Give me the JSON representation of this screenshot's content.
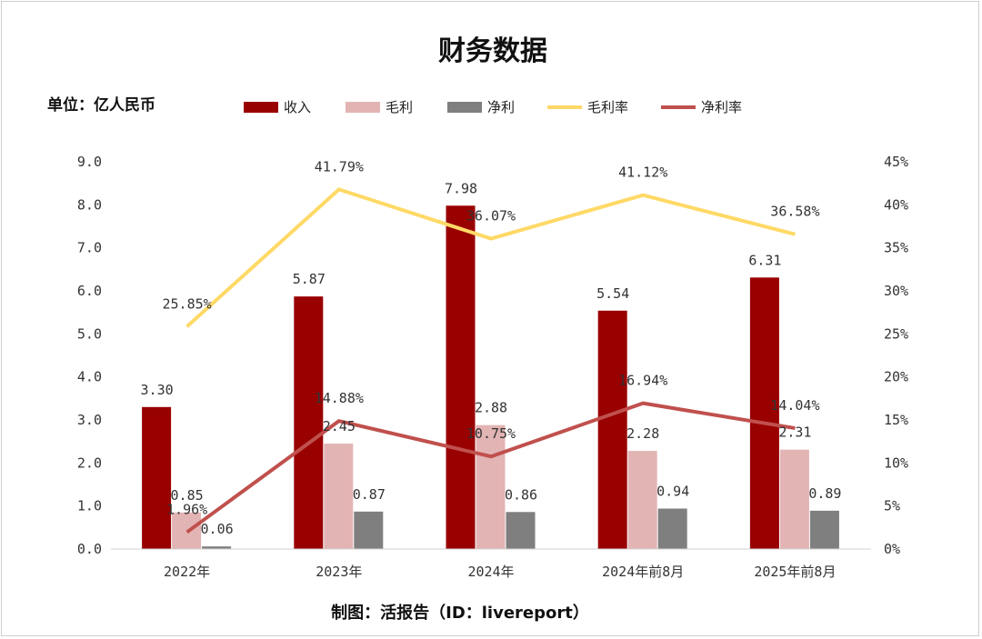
{
  "chart_data": {
    "type": "bar",
    "title": "财务数据",
    "unit_label": "单位：亿人民币",
    "source": "制图：活报告（ID：livereport）",
    "categories": [
      "2022年",
      "2023年",
      "2024年",
      "2024年前8月",
      "2025年前8月"
    ],
    "y_left": {
      "min": 0,
      "max": 9,
      "step": 1,
      "ticks": [
        "0.0",
        "1.0",
        "2.0",
        "3.0",
        "4.0",
        "5.0",
        "6.0",
        "7.0",
        "8.0",
        "9.0"
      ]
    },
    "y_right": {
      "min": 0,
      "max": 45,
      "step": 5,
      "ticks": [
        "0%",
        "5%",
        "10%",
        "15%",
        "20%",
        "25%",
        "30%",
        "35%",
        "40%",
        "45%"
      ]
    },
    "series": [
      {
        "name": "收入",
        "kind": "bar",
        "color": "#990000",
        "values": [
          3.3,
          5.87,
          7.98,
          5.54,
          6.31
        ],
        "labels": [
          "3.30",
          "5.87",
          "7.98",
          "5.54",
          "6.31"
        ]
      },
      {
        "name": "毛利",
        "kind": "bar",
        "color": "#e3b4b4",
        "values": [
          0.85,
          2.45,
          2.88,
          2.28,
          2.31
        ],
        "labels": [
          "0.85",
          "2.45",
          "2.88",
          "2.28",
          "2.31"
        ]
      },
      {
        "name": "净利",
        "kind": "bar",
        "color": "#7f7f7f",
        "values": [
          0.06,
          0.87,
          0.86,
          0.94,
          0.89
        ],
        "labels": [
          "0.06",
          "0.87",
          "0.86",
          "0.94",
          "0.89"
        ]
      },
      {
        "name": "毛利率",
        "kind": "line",
        "axis": "right",
        "color": "#ffd966",
        "values": [
          25.85,
          41.79,
          36.07,
          41.12,
          36.58
        ],
        "labels": [
          "25.85%",
          "41.79%",
          "36.07%",
          "41.12%",
          "36.58%"
        ]
      },
      {
        "name": "净利率",
        "kind": "line",
        "axis": "right",
        "color": "#c0504d",
        "values": [
          1.96,
          14.88,
          10.75,
          16.94,
          14.04
        ],
        "labels": [
          "1.96%",
          "14.88%",
          "10.75%",
          "16.94%",
          "14.04%"
        ]
      }
    ],
    "grid": false,
    "legend_position": "top"
  }
}
